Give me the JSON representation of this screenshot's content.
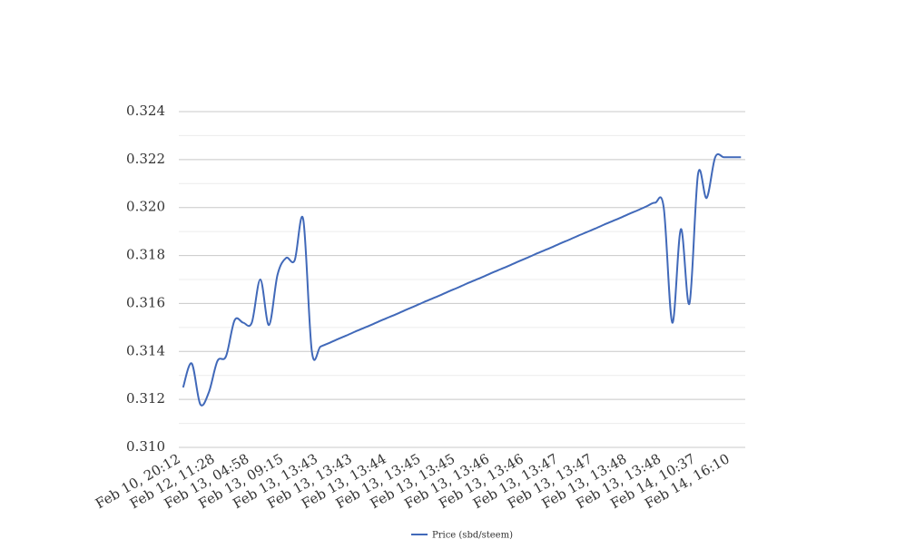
{
  "chart_data": {
    "type": "line",
    "categories": [
      "Feb 10, 20:12",
      null,
      null,
      null,
      "Feb 12, 11:28",
      null,
      null,
      null,
      "Feb 13, 04:58",
      null,
      null,
      null,
      "Feb 13, 09:15",
      null,
      null,
      null,
      "Feb 13, 13:43",
      null,
      null,
      null,
      "Feb 13, 13:43",
      null,
      null,
      null,
      "Feb 13, 13:44",
      null,
      null,
      null,
      "Feb 13, 13:45",
      null,
      null,
      null,
      "Feb 13, 13:45",
      null,
      null,
      null,
      "Feb 13, 13:46",
      null,
      null,
      null,
      "Feb 13, 13:46",
      null,
      null,
      null,
      "Feb 13, 13:47",
      null,
      null,
      null,
      "Feb 13, 13:47",
      null,
      null,
      null,
      "Feb 13, 13:48",
      null,
      null,
      null,
      "Feb 13, 13:48",
      null,
      null,
      null,
      "Feb 14, 10:37",
      null,
      null,
      null,
      "Feb 14, 16:10",
      null
    ],
    "series": [
      {
        "name": "Price (sbd/steem)",
        "color": "#4169b9",
        "values": [
          0.3125,
          0.3135,
          0.3118,
          0.3123,
          0.3136,
          0.3138,
          0.3153,
          0.3152,
          0.3152,
          0.317,
          0.3151,
          0.3172,
          0.3179,
          0.3178,
          0.3195,
          0.314,
          0.3142,
          0.31435,
          0.31451,
          0.31466,
          0.31482,
          0.31497,
          0.31512,
          0.31528,
          0.31543,
          0.31558,
          0.31574,
          0.31589,
          0.31605,
          0.3162,
          0.31635,
          0.31651,
          0.31666,
          0.31682,
          0.31697,
          0.31712,
          0.31728,
          0.31743,
          0.31758,
          0.31774,
          0.31789,
          0.31805,
          0.3182,
          0.31835,
          0.31851,
          0.31866,
          0.31882,
          0.31897,
          0.31912,
          0.31928,
          0.31943,
          0.31958,
          0.31974,
          0.31989,
          0.32005,
          0.3202,
          0.32,
          0.3152,
          0.3191,
          0.316,
          0.3214,
          0.3204,
          0.3221,
          0.3221,
          0.3221,
          0.3221
        ]
      }
    ],
    "ylim": [
      0.31,
      0.324
    ],
    "yticks": [
      {
        "value": 0.31,
        "label": "0.310"
      },
      0.312,
      0.314,
      0.316,
      0.318,
      {
        "value": 0.32,
        "label": "0.320"
      },
      0.322,
      0.324
    ],
    "grid": true,
    "minor_grid": true,
    "smooth": true,
    "legend": "bottom"
  }
}
